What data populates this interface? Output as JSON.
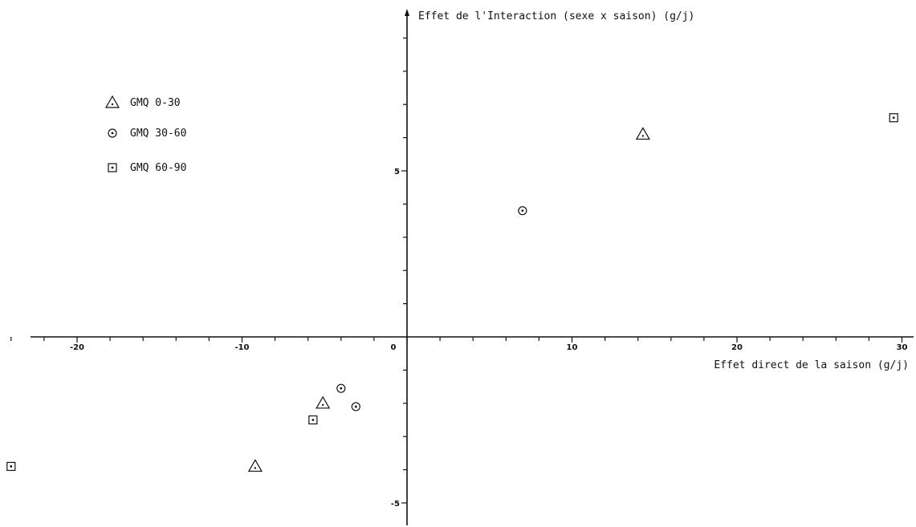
{
  "chart_data": {
    "type": "scatter",
    "title": "",
    "xlabel": "Effet direct de la saison (g/j)",
    "ylabel": "Effet de l'Interaction (sexe x saison) (g/j)",
    "xlim": [
      -24.5,
      30.8
    ],
    "ylim": [
      -5.6,
      9.8
    ],
    "x_ticks": [
      -20,
      -10,
      0,
      10,
      20,
      30
    ],
    "x_tick_labels": [
      "-20",
      "-10",
      "0",
      "10",
      "20",
      "30"
    ],
    "y_ticks": [
      -5,
      5
    ],
    "y_tick_labels": [
      "-5",
      "5"
    ],
    "legend_position": "top-left",
    "series": [
      {
        "name": "GMQ 0-30",
        "marker": "triangle",
        "points": [
          {
            "x": 14.3,
            "y": 6.1
          },
          {
            "x": -5.1,
            "y": -2.0
          },
          {
            "x": -9.2,
            "y": -3.9
          }
        ]
      },
      {
        "name": "GMQ 30-60",
        "marker": "circle",
        "points": [
          {
            "x": 7.0,
            "y": 3.8
          },
          {
            "x": -4.0,
            "y": -1.55
          },
          {
            "x": -3.1,
            "y": -2.1
          }
        ]
      },
      {
        "name": "GMQ 60-90",
        "marker": "square",
        "points": [
          {
            "x": 29.5,
            "y": 6.6
          },
          {
            "x": -5.7,
            "y": -2.5
          },
          {
            "x": -24.0,
            "y": -3.9
          }
        ]
      }
    ]
  }
}
